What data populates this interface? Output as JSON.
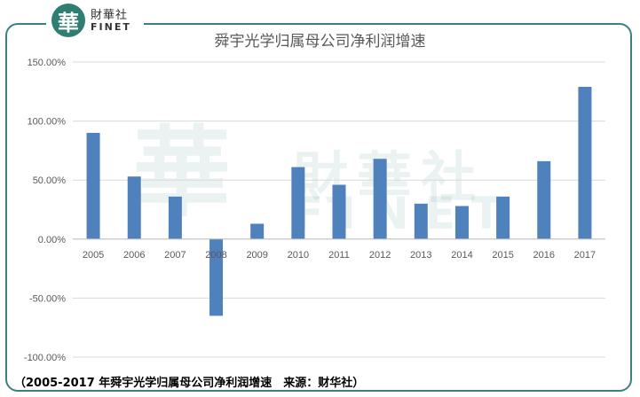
{
  "logo": {
    "mark": "華",
    "name_cn": "財華社",
    "name_en": "FINET"
  },
  "watermark": {
    "name_cn": "財華社",
    "name_en": "FINET"
  },
  "caption": "（2005-2017 年舜宇光学归属母公司净利润增速　来源：财华社）",
  "colors": {
    "bar": "#4f81bd",
    "frame": "#3f7f80",
    "grid": "#d9d9d9"
  },
  "chart_data": {
    "type": "bar",
    "title": "舜宇光学归属母公司净利润增速",
    "categories": [
      "2005",
      "2006",
      "2007",
      "2008",
      "2009",
      "2010",
      "2011",
      "2012",
      "2013",
      "2014",
      "2015",
      "2016",
      "2017"
    ],
    "values": [
      90,
      53,
      36,
      -65,
      13,
      61,
      46,
      68,
      30,
      28,
      36,
      66,
      129
    ],
    "ylim": [
      -100,
      150
    ],
    "yticks": [
      "150.00%",
      "100.00%",
      "50.00%",
      "0.00%",
      "-50.00%",
      "-100.00%"
    ],
    "ytick_values": [
      150,
      100,
      50,
      0,
      -50,
      -100
    ],
    "grid": true,
    "xlabel": "",
    "ylabel": ""
  }
}
